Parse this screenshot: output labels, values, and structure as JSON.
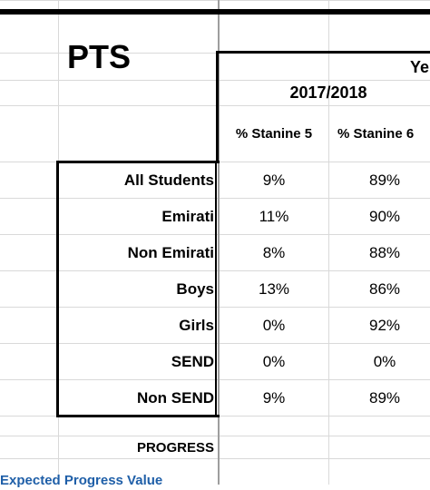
{
  "sheet": {
    "title": "PTS",
    "year_group_partial": "Ye",
    "period": "2017/2018",
    "columns": [
      "% Stanine 5",
      "% Stanine 6"
    ],
    "rows": [
      {
        "label": "All Students",
        "stanine5": "9%",
        "stanine6": "89%"
      },
      {
        "label": "Emirati",
        "stanine5": "11%",
        "stanine6": "90%"
      },
      {
        "label": "Non Emirati",
        "stanine5": "8%",
        "stanine6": "88%"
      },
      {
        "label": "Boys",
        "stanine5": "13%",
        "stanine6": "86%"
      },
      {
        "label": "Girls",
        "stanine5": "0%",
        "stanine6": "92%"
      },
      {
        "label": "SEND",
        "stanine5": "0%",
        "stanine6": "0%"
      },
      {
        "label": "Non SEND",
        "stanine5": "9%",
        "stanine6": "89%"
      }
    ],
    "progress_label": "PROGRESS",
    "expected_progress_label": "Expected Progress Value"
  },
  "colors": {
    "gridline": "#d9d9d9",
    "border": "#000000",
    "link_blue": "#1f5fa8"
  }
}
